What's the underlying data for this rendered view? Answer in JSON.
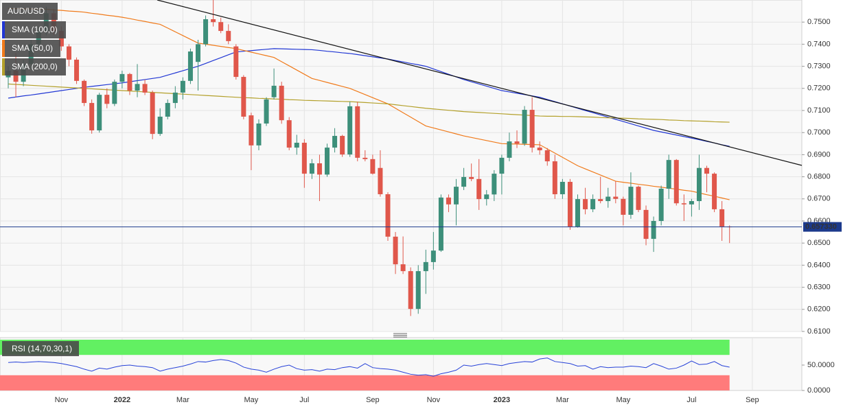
{
  "chart_data": [
    {
      "type": "candlestick",
      "symbol": "AUD/USD",
      "categories": [
        null,
        null,
        null,
        null,
        null,
        null,
        null,
        "Nov",
        null,
        null,
        null,
        null,
        null,
        null,
        null,
        "2022",
        null,
        null,
        null,
        null,
        null,
        null,
        null,
        "Mar",
        null,
        null,
        null,
        null,
        null,
        null,
        null,
        null,
        "May",
        null,
        null,
        null,
        null,
        null,
        null,
        "Jul",
        null,
        null,
        null,
        null,
        null,
        null,
        null,
        null,
        "Sep",
        null,
        null,
        null,
        null,
        null,
        null,
        null,
        "Nov",
        null,
        null,
        null,
        null,
        null,
        null,
        null,
        null,
        "2023",
        null,
        null,
        null,
        null,
        null,
        null,
        null,
        "Mar",
        null,
        null,
        null,
        null,
        null,
        null,
        null,
        "May",
        null,
        null,
        null,
        null,
        null,
        null,
        null,
        null,
        "Jul",
        null,
        null,
        null,
        null,
        null,
        null,
        null,
        "Sep",
        null,
        null,
        null,
        null,
        null,
        null
      ],
      "open": [
        0.725,
        0.728,
        0.723,
        0.731,
        0.74,
        0.746,
        0.754,
        0.746,
        0.739,
        0.733,
        0.7234,
        0.7134,
        0.701,
        0.7171,
        0.713,
        0.723,
        0.7265,
        0.719,
        0.722,
        0.7181,
        0.6994,
        0.7072,
        0.7134,
        0.7181,
        0.7234,
        0.732,
        0.74,
        0.7513,
        0.75,
        0.746,
        0.739,
        0.7252,
        0.7078,
        0.6942,
        0.7041,
        0.716,
        0.7212,
        0.7056,
        0.6932,
        0.6954,
        0.6814,
        0.6861,
        0.681,
        0.6932,
        0.6985,
        0.6901,
        0.7119,
        0.6886,
        0.688,
        0.684,
        0.6721,
        0.6529,
        0.6404,
        0.6373,
        0.6202,
        0.6373,
        0.6414,
        0.6466,
        0.6706,
        0.6675,
        0.6755,
        0.6799,
        0.679,
        0.6699,
        0.672,
        0.6814,
        0.6886,
        0.696,
        0.695,
        0.7103,
        0.6932,
        0.692,
        0.687,
        0.6721,
        0.6777,
        0.6575,
        0.6699,
        0.6653,
        0.6699,
        0.669,
        0.671,
        0.67,
        0.6628,
        0.6755,
        0.665,
        0.6519,
        0.66,
        0.6746,
        0.6876,
        0.668,
        0.6675,
        0.669,
        0.684,
        0.6814,
        0.6653,
        0.6575,
        null,
        null,
        null,
        null,
        null,
        null,
        null,
        null,
        null
      ],
      "high": [
        0.73,
        0.736,
        0.733,
        0.742,
        0.748,
        0.757,
        0.756,
        0.748,
        0.74,
        0.734,
        0.724,
        0.715,
        0.718,
        0.72,
        0.724,
        0.728,
        0.727,
        0.731,
        0.724,
        0.719,
        0.711,
        0.715,
        0.721,
        0.725,
        0.738,
        0.742,
        0.753,
        0.76,
        0.752,
        0.749,
        0.74,
        0.726,
        0.709,
        0.706,
        0.716,
        0.729,
        0.723,
        0.707,
        0.699,
        0.697,
        0.688,
        0.69,
        0.695,
        0.702,
        0.699,
        0.714,
        0.714,
        0.692,
        0.69,
        0.692,
        0.673,
        0.655,
        0.653,
        0.639,
        0.64,
        0.647,
        0.655,
        0.672,
        0.672,
        0.679,
        0.684,
        0.686,
        0.688,
        0.674,
        0.683,
        0.69,
        0.7,
        0.701,
        0.712,
        0.716,
        0.696,
        0.693,
        0.69,
        0.679,
        0.679,
        0.672,
        0.675,
        0.672,
        0.68,
        0.675,
        0.678,
        0.671,
        0.682,
        0.676,
        0.667,
        0.662,
        0.676,
        0.69,
        0.688,
        0.672,
        0.67,
        0.69,
        0.685,
        0.682,
        0.669,
        0.658,
        null,
        null,
        null,
        null,
        null,
        null,
        null,
        null,
        null
      ],
      "low": [
        0.72,
        0.716,
        0.721,
        0.729,
        0.738,
        0.744,
        0.744,
        0.737,
        0.73,
        0.722,
        0.712,
        0.6995,
        0.7,
        0.711,
        0.712,
        0.72,
        0.717,
        0.716,
        0.717,
        0.697,
        0.6985,
        0.706,
        0.711,
        0.715,
        0.722,
        0.719,
        0.739,
        0.748,
        0.745,
        0.74,
        0.724,
        0.706,
        0.683,
        0.692,
        0.703,
        0.715,
        0.704,
        0.692,
        0.69,
        0.675,
        0.679,
        0.669,
        0.68,
        0.691,
        0.689,
        0.689,
        0.687,
        0.687,
        0.681,
        0.671,
        0.651,
        0.636,
        0.636,
        0.617,
        0.618,
        0.627,
        0.638,
        0.646,
        0.664,
        0.658,
        0.674,
        0.678,
        0.665,
        0.667,
        0.669,
        0.672,
        0.687,
        0.693,
        0.694,
        0.691,
        0.69,
        0.685,
        0.67,
        0.67,
        0.656,
        0.657,
        0.663,
        0.664,
        0.668,
        0.666,
        0.668,
        0.658,
        0.661,
        0.664,
        0.649,
        0.646,
        0.658,
        0.67,
        0.667,
        0.66,
        0.662,
        0.665,
        0.673,
        0.664,
        0.651,
        0.65,
        null,
        null,
        null,
        null,
        null,
        null,
        null,
        null,
        null
      ],
      "close": [
        0.728,
        0.723,
        0.731,
        0.74,
        0.746,
        0.754,
        0.746,
        0.739,
        0.733,
        0.7234,
        0.7134,
        0.701,
        0.7171,
        0.713,
        0.723,
        0.7265,
        0.719,
        0.722,
        0.7181,
        0.6994,
        0.7072,
        0.7134,
        0.7181,
        0.7234,
        0.7367,
        0.74,
        0.7513,
        0.75,
        0.746,
        0.7414,
        0.7252,
        0.7072,
        0.6942,
        0.7041,
        0.715,
        0.7212,
        0.7056,
        0.6932,
        0.6954,
        0.6814,
        0.6861,
        0.681,
        0.6932,
        0.6985,
        0.6901,
        0.7119,
        0.6886,
        0.688,
        0.6814,
        0.6721,
        0.6529,
        0.6404,
        0.6373,
        0.6202,
        0.6373,
        0.6414,
        0.6466,
        0.6706,
        0.6675,
        0.6755,
        0.6799,
        0.679,
        0.6699,
        0.672,
        0.6814,
        0.6886,
        0.696,
        0.695,
        0.7103,
        0.6932,
        0.692,
        0.687,
        0.6721,
        0.6777,
        0.6575,
        0.6699,
        0.6653,
        0.6699,
        0.669,
        0.671,
        0.67,
        0.6628,
        0.6755,
        0.665,
        0.6519,
        0.66,
        0.6746,
        0.6876,
        0.668,
        0.6675,
        0.669,
        0.684,
        0.6814,
        0.6653,
        0.6575,
        0.6573,
        null,
        null,
        null,
        null,
        null,
        null,
        null,
        null,
        null
      ],
      "up_color": "#3d8f7a",
      "down_color": "#e0574b",
      "overlays": [
        {
          "name": "SMA (100,0)",
          "color": "#2036d4",
          "values": [
            0.7156,
            0.7161,
            0.7166,
            0.717,
            0.7175,
            0.718,
            0.7185,
            0.719,
            0.7195,
            0.72,
            0.7205,
            0.7209,
            0.7213,
            0.7217,
            0.7221,
            0.7225,
            0.723,
            0.7235,
            0.724,
            0.7245,
            0.725,
            0.726,
            0.727,
            0.728,
            0.729,
            0.73,
            0.7313,
            0.7326,
            0.7339,
            0.7352,
            0.7365,
            0.7368,
            0.7371,
            0.7374,
            0.7377,
            0.738,
            0.7379,
            0.7378,
            0.7377,
            0.7376,
            0.7375,
            0.7372,
            0.7368,
            0.7365,
            0.7361,
            0.7358,
            0.7353,
            0.7348,
            0.7343,
            0.7338,
            0.7333,
            0.7326,
            0.732,
            0.7313,
            0.7307,
            0.73,
            0.7288,
            0.7276,
            0.7264,
            0.7252,
            0.724,
            0.723,
            0.722,
            0.721,
            0.72,
            0.719,
            0.7184,
            0.7178,
            0.7172,
            0.7166,
            0.716,
            0.715,
            0.714,
            0.713,
            0.712,
            0.711,
            0.71,
            0.709,
            0.708,
            0.707,
            0.706,
            0.705,
            0.704,
            0.703,
            0.702,
            0.701,
            0.7003,
            0.6996,
            0.6989,
            0.6982,
            0.6975,
            0.6968,
            0.696,
            0.6953,
            0.6945,
            0.6938,
            null,
            null,
            null,
            null,
            null,
            null,
            null,
            null,
            null
          ]
        },
        {
          "name": "SMA (50,0)",
          "color": "#f07a1a",
          "values": [
            0.7562,
            0.7561,
            0.756,
            0.756,
            0.7559,
            0.7558,
            0.7555,
            0.7553,
            0.755,
            0.7548,
            0.7545,
            0.754,
            0.7536,
            0.7531,
            0.7527,
            0.7522,
            0.7516,
            0.7509,
            0.7503,
            0.7496,
            0.749,
            0.7473,
            0.7456,
            0.7439,
            0.7422,
            0.7405,
            0.74,
            0.7395,
            0.739,
            0.7385,
            0.738,
            0.7372,
            0.7364,
            0.7356,
            0.7348,
            0.734,
            0.7321,
            0.7302,
            0.7283,
            0.7264,
            0.7245,
            0.7236,
            0.7227,
            0.7218,
            0.7209,
            0.72,
            0.7186,
            0.7172,
            0.7158,
            0.7144,
            0.713,
            0.711,
            0.709,
            0.707,
            0.705,
            0.703,
            0.7021,
            0.7012,
            0.7003,
            0.6994,
            0.6985,
            0.6978,
            0.6971,
            0.6964,
            0.6957,
            0.695,
            0.6949,
            0.6948,
            0.6947,
            0.6946,
            0.6945,
            0.6926,
            0.6907,
            0.6888,
            0.6869,
            0.685,
            0.6836,
            0.6822,
            0.6808,
            0.6794,
            0.678,
            0.6775,
            0.6771,
            0.6766,
            0.6762,
            0.6757,
            0.6753,
            0.6748,
            0.6744,
            0.6739,
            0.6735,
            0.6727,
            0.6719,
            0.6712,
            0.6704,
            0.6696,
            null,
            null,
            null,
            null,
            null,
            null,
            null,
            null,
            null
          ]
        },
        {
          "name": "SMA (200,0)",
          "color": "#b3a02a",
          "values": [
            0.722,
            0.7218,
            0.7216,
            0.7214,
            0.7212,
            0.721,
            0.7208,
            0.7206,
            0.7204,
            0.7202,
            0.72,
            0.7198,
            0.7196,
            0.7194,
            0.7192,
            0.719,
            0.7188,
            0.7186,
            0.7184,
            0.7182,
            0.718,
            0.7178,
            0.7176,
            0.7174,
            0.7172,
            0.717,
            0.7168,
            0.7166,
            0.7164,
            0.7162,
            0.716,
            0.7158,
            0.7157,
            0.7155,
            0.7154,
            0.7152,
            0.7151,
            0.7149,
            0.7148,
            0.7146,
            0.7145,
            0.7144,
            0.7143,
            0.7142,
            0.7141,
            0.714,
            0.7138,
            0.7136,
            0.7134,
            0.7132,
            0.713,
            0.7126,
            0.7122,
            0.7118,
            0.7114,
            0.711,
            0.7107,
            0.7104,
            0.7101,
            0.7098,
            0.7095,
            0.7093,
            0.7091,
            0.7089,
            0.7087,
            0.7085,
            0.7083,
            0.7081,
            0.7079,
            0.7077,
            0.7075,
            0.7074,
            0.7074,
            0.7073,
            0.7073,
            0.7072,
            0.7071,
            0.707,
            0.7068,
            0.7067,
            0.7066,
            0.7065,
            0.7064,
            0.7062,
            0.7061,
            0.706,
            0.7059,
            0.7057,
            0.7056,
            0.7054,
            0.7053,
            0.7052,
            0.7051,
            0.7049,
            0.7048,
            0.7047,
            null,
            null,
            null,
            null,
            null,
            null,
            null,
            null,
            null
          ]
        }
      ],
      "ylim": [
        0.61,
        0.76
      ],
      "yticks": [
        {
          "value": 0.61,
          "label": "0.6100"
        },
        {
          "value": 0.62,
          "label": "0.6200"
        },
        {
          "value": 0.63,
          "label": "0.6300"
        },
        {
          "value": 0.64,
          "label": "0.6400"
        },
        {
          "value": 0.65,
          "label": "0.6500"
        },
        {
          "value": 0.66,
          "label": "0.6600"
        },
        {
          "value": 0.67,
          "label": "0.6700"
        },
        {
          "value": 0.68,
          "label": "0.6800"
        },
        {
          "value": 0.69,
          "label": "0.6900"
        },
        {
          "value": 0.7,
          "label": "0.7000"
        },
        {
          "value": 0.71,
          "label": "0.7100"
        },
        {
          "value": 0.72,
          "label": "0.7200"
        },
        {
          "value": 0.73,
          "label": "0.7300"
        },
        {
          "value": 0.74,
          "label": "0.7400"
        },
        {
          "value": 0.75,
          "label": "0.7500"
        }
      ],
      "grid": true,
      "last_price": {
        "value": 0.65733,
        "label": "0.657330",
        "color": "#1c3a8c"
      }
    },
    {
      "type": "line",
      "name": "RSI (14,70,30,1)",
      "color": "#2540d8",
      "values": [
        55,
        56,
        55,
        56,
        57,
        56,
        55,
        53,
        50,
        47,
        42,
        38,
        44,
        42,
        46,
        49,
        50,
        48,
        47,
        45,
        38,
        42,
        45,
        48,
        52,
        57,
        56,
        59,
        61,
        59,
        54,
        46,
        42,
        40,
        36,
        42,
        47,
        50,
        43,
        40,
        41,
        38,
        42,
        41,
        45,
        47,
        44,
        53,
        45,
        43,
        42,
        40,
        36,
        32,
        30,
        31,
        28,
        33,
        36,
        40,
        50,
        48,
        51,
        53,
        51,
        49,
        53,
        55,
        57,
        56,
        62,
        64,
        57,
        55,
        53,
        48,
        49,
        42,
        47,
        45,
        46,
        46,
        48,
        47,
        45,
        53,
        48,
        42,
        44,
        50,
        58,
        51,
        52,
        57,
        49,
        46,
        null,
        null,
        null,
        null,
        null,
        null,
        null,
        null,
        null
      ],
      "ylim": [
        0,
        100
      ],
      "yticks": [
        {
          "value": 0,
          "label": "0.0000"
        },
        {
          "value": 50,
          "label": "50.0000"
        }
      ],
      "bands": [
        {
          "range": [
            70,
            100
          ],
          "color": "#62f062"
        },
        {
          "range": [
            0,
            30
          ],
          "color": "#ff7b7b"
        }
      ]
    }
  ]
}
